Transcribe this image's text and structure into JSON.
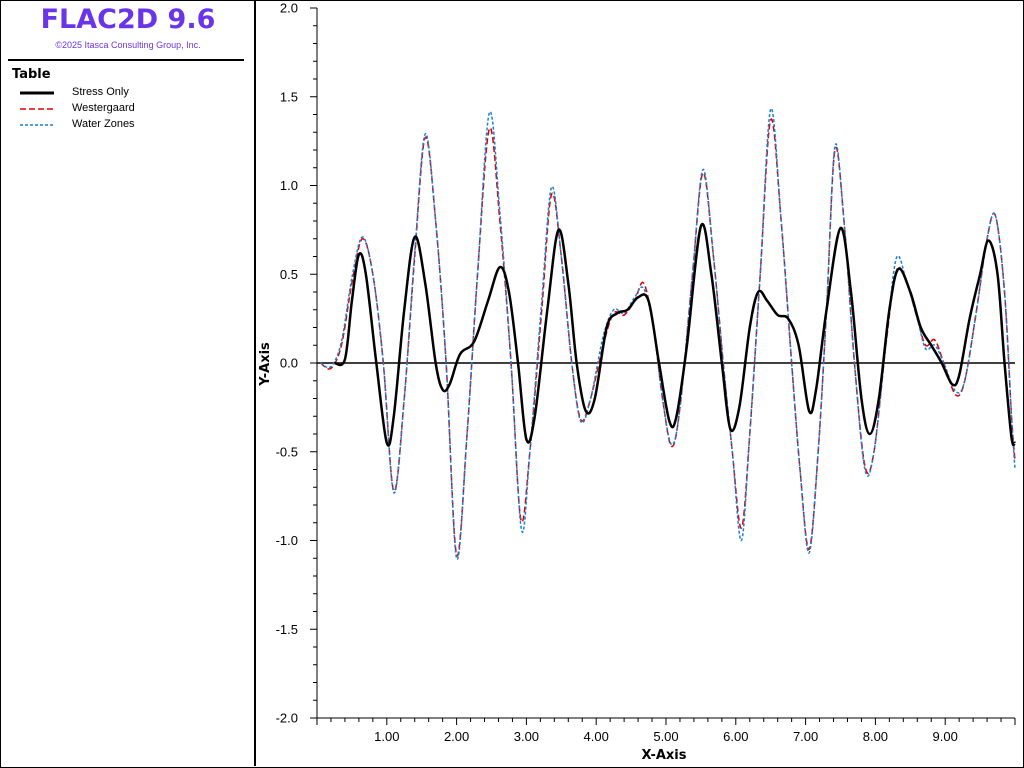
{
  "app": {
    "title": "FLAC2D 9.6",
    "copyright": "©2025 Itasca Consulting Group, Inc."
  },
  "legend": {
    "title": "Table",
    "items": [
      {
        "label": "Stress Only",
        "color": "#000000",
        "style": "solid"
      },
      {
        "label": "Westergaard",
        "color": "#dd0000",
        "style": "dashed"
      },
      {
        "label": "Water Zones",
        "color": "#1a7fd6",
        "style": "dotted"
      }
    ]
  },
  "chart_data": {
    "type": "line",
    "xlabel": "X-Axis",
    "ylabel": "Y-Axis",
    "xlim": [
      0,
      10
    ],
    "ylim": [
      -2.0,
      2.0
    ],
    "x_ticks": [
      "1.00",
      "2.00",
      "3.00",
      "4.00",
      "5.00",
      "6.00",
      "7.00",
      "8.00",
      "9.00"
    ],
    "y_ticks": [
      "2.0",
      "1.5",
      "1.0",
      "0.5",
      "0.0",
      "-0.5",
      "-1.0",
      "-1.5",
      "-2.0"
    ],
    "grid": false,
    "series": [
      {
        "name": "Stress Only",
        "color": "#000000",
        "style": "solid",
        "points": [
          [
            0.25,
            0.0
          ],
          [
            0.4,
            0.02
          ],
          [
            0.5,
            0.35
          ],
          [
            0.6,
            0.61
          ],
          [
            0.7,
            0.5
          ],
          [
            0.85,
            0.0
          ],
          [
            1.0,
            -0.45
          ],
          [
            1.1,
            -0.3
          ],
          [
            1.25,
            0.3
          ],
          [
            1.4,
            0.71
          ],
          [
            1.55,
            0.45
          ],
          [
            1.7,
            0.0
          ],
          [
            1.8,
            -0.15
          ],
          [
            1.9,
            -0.12
          ],
          [
            2.05,
            0.05
          ],
          [
            2.25,
            0.12
          ],
          [
            2.45,
            0.35
          ],
          [
            2.62,
            0.54
          ],
          [
            2.75,
            0.4
          ],
          [
            2.88,
            0.0
          ],
          [
            3.0,
            -0.43
          ],
          [
            3.12,
            -0.3
          ],
          [
            3.3,
            0.3
          ],
          [
            3.46,
            0.75
          ],
          [
            3.6,
            0.45
          ],
          [
            3.72,
            0.0
          ],
          [
            3.85,
            -0.27
          ],
          [
            3.98,
            -0.2
          ],
          [
            4.15,
            0.2
          ],
          [
            4.3,
            0.28
          ],
          [
            4.45,
            0.3
          ],
          [
            4.6,
            0.37
          ],
          [
            4.75,
            0.35
          ],
          [
            4.9,
            0.0
          ],
          [
            5.05,
            -0.33
          ],
          [
            5.15,
            -0.3
          ],
          [
            5.3,
            0.1
          ],
          [
            5.5,
            0.77
          ],
          [
            5.65,
            0.5
          ],
          [
            5.8,
            0.0
          ],
          [
            5.92,
            -0.37
          ],
          [
            6.05,
            -0.25
          ],
          [
            6.2,
            0.2
          ],
          [
            6.32,
            0.4
          ],
          [
            6.45,
            0.35
          ],
          [
            6.6,
            0.27
          ],
          [
            6.75,
            0.25
          ],
          [
            6.9,
            0.1
          ],
          [
            7.05,
            -0.27
          ],
          [
            7.15,
            -0.15
          ],
          [
            7.3,
            0.3
          ],
          [
            7.5,
            0.76
          ],
          [
            7.65,
            0.4
          ],
          [
            7.8,
            -0.2
          ],
          [
            7.92,
            -0.4
          ],
          [
            8.05,
            -0.2
          ],
          [
            8.2,
            0.3
          ],
          [
            8.33,
            0.53
          ],
          [
            8.5,
            0.4
          ],
          [
            8.65,
            0.2
          ],
          [
            8.8,
            0.1
          ],
          [
            8.95,
            0.0
          ],
          [
            9.1,
            -0.12
          ],
          [
            9.2,
            -0.07
          ],
          [
            9.35,
            0.25
          ],
          [
            9.5,
            0.5
          ],
          [
            9.62,
            0.69
          ],
          [
            9.75,
            0.5
          ],
          [
            9.85,
            0.0
          ],
          [
            9.95,
            -0.42
          ],
          [
            10.0,
            -0.45
          ]
        ]
      },
      {
        "name": "Westergaard",
        "color": "#dd0000",
        "style": "dashed",
        "points": [
          [
            0.05,
            0.0
          ],
          [
            0.2,
            -0.03
          ],
          [
            0.35,
            0.1
          ],
          [
            0.5,
            0.45
          ],
          [
            0.65,
            0.7
          ],
          [
            0.8,
            0.5
          ],
          [
            0.95,
            0.0
          ],
          [
            1.1,
            -0.72
          ],
          [
            1.25,
            -0.2
          ],
          [
            1.4,
            0.6
          ],
          [
            1.55,
            1.27
          ],
          [
            1.7,
            0.8
          ],
          [
            1.85,
            0.0
          ],
          [
            2.0,
            -1.08
          ],
          [
            2.15,
            -0.4
          ],
          [
            2.3,
            0.5
          ],
          [
            2.47,
            1.32
          ],
          [
            2.62,
            0.8
          ],
          [
            2.78,
            0.0
          ],
          [
            2.92,
            -0.88
          ],
          [
            3.05,
            -0.5
          ],
          [
            3.22,
            0.3
          ],
          [
            3.36,
            0.95
          ],
          [
            3.5,
            0.6
          ],
          [
            3.65,
            0.0
          ],
          [
            3.78,
            -0.32
          ],
          [
            3.92,
            -0.2
          ],
          [
            4.1,
            0.1
          ],
          [
            4.25,
            0.28
          ],
          [
            4.4,
            0.27
          ],
          [
            4.55,
            0.35
          ],
          [
            4.68,
            0.45
          ],
          [
            4.82,
            0.2
          ],
          [
            4.95,
            -0.2
          ],
          [
            5.08,
            -0.47
          ],
          [
            5.2,
            -0.25
          ],
          [
            5.38,
            0.5
          ],
          [
            5.53,
            1.07
          ],
          [
            5.68,
            0.6
          ],
          [
            5.82,
            0.0
          ],
          [
            5.95,
            -0.5
          ],
          [
            6.08,
            -0.93
          ],
          [
            6.2,
            -0.4
          ],
          [
            6.35,
            0.5
          ],
          [
            6.5,
            1.37
          ],
          [
            6.65,
            0.8
          ],
          [
            6.8,
            0.0
          ],
          [
            6.92,
            -0.6
          ],
          [
            7.05,
            -1.05
          ],
          [
            7.18,
            -0.5
          ],
          [
            7.3,
            0.3
          ],
          [
            7.42,
            1.2
          ],
          [
            7.55,
            0.8
          ],
          [
            7.7,
            0.0
          ],
          [
            7.85,
            -0.58
          ],
          [
            7.98,
            -0.5
          ],
          [
            8.15,
            0.1
          ],
          [
            8.3,
            0.52
          ],
          [
            8.45,
            0.45
          ],
          [
            8.6,
            0.25
          ],
          [
            8.72,
            0.1
          ],
          [
            8.85,
            0.13
          ],
          [
            8.98,
            0.0
          ],
          [
            9.15,
            -0.18
          ],
          [
            9.28,
            -0.1
          ],
          [
            9.45,
            0.3
          ],
          [
            9.6,
            0.7
          ],
          [
            9.72,
            0.83
          ],
          [
            9.85,
            0.4
          ],
          [
            9.95,
            -0.3
          ],
          [
            10.0,
            -0.55
          ]
        ]
      },
      {
        "name": "Water Zones",
        "color": "#1a7fd6",
        "style": "dotted",
        "points": [
          [
            0.05,
            0.0
          ],
          [
            0.2,
            -0.02
          ],
          [
            0.35,
            0.12
          ],
          [
            0.5,
            0.48
          ],
          [
            0.65,
            0.71
          ],
          [
            0.8,
            0.5
          ],
          [
            0.95,
            0.0
          ],
          [
            1.1,
            -0.73
          ],
          [
            1.25,
            -0.2
          ],
          [
            1.4,
            0.62
          ],
          [
            1.55,
            1.29
          ],
          [
            1.7,
            0.8
          ],
          [
            1.85,
            0.0
          ],
          [
            2.0,
            -1.1
          ],
          [
            2.15,
            -0.4
          ],
          [
            2.3,
            0.5
          ],
          [
            2.47,
            1.41
          ],
          [
            2.62,
            0.85
          ],
          [
            2.78,
            0.0
          ],
          [
            2.93,
            -0.94
          ],
          [
            3.05,
            -0.5
          ],
          [
            3.22,
            0.35
          ],
          [
            3.36,
            0.99
          ],
          [
            3.5,
            0.6
          ],
          [
            3.65,
            0.0
          ],
          [
            3.78,
            -0.33
          ],
          [
            3.92,
            -0.2
          ],
          [
            4.1,
            0.15
          ],
          [
            4.25,
            0.3
          ],
          [
            4.4,
            0.28
          ],
          [
            4.55,
            0.37
          ],
          [
            4.68,
            0.42
          ],
          [
            4.82,
            0.2
          ],
          [
            4.95,
            -0.2
          ],
          [
            5.08,
            -0.46
          ],
          [
            5.2,
            -0.25
          ],
          [
            5.38,
            0.5
          ],
          [
            5.53,
            1.09
          ],
          [
            5.68,
            0.6
          ],
          [
            5.82,
            0.0
          ],
          [
            5.95,
            -0.5
          ],
          [
            6.08,
            -1.0
          ],
          [
            6.2,
            -0.4
          ],
          [
            6.35,
            0.5
          ],
          [
            6.5,
            1.43
          ],
          [
            6.65,
            0.8
          ],
          [
            6.8,
            0.0
          ],
          [
            6.92,
            -0.6
          ],
          [
            7.05,
            -1.07
          ],
          [
            7.18,
            -0.5
          ],
          [
            7.3,
            0.3
          ],
          [
            7.42,
            1.22
          ],
          [
            7.55,
            0.8
          ],
          [
            7.7,
            0.0
          ],
          [
            7.85,
            -0.6
          ],
          [
            7.98,
            -0.5
          ],
          [
            8.15,
            0.1
          ],
          [
            8.3,
            0.59
          ],
          [
            8.45,
            0.45
          ],
          [
            8.6,
            0.25
          ],
          [
            8.72,
            0.08
          ],
          [
            8.85,
            0.1
          ],
          [
            8.98,
            0.0
          ],
          [
            9.15,
            -0.16
          ],
          [
            9.28,
            -0.1
          ],
          [
            9.45,
            0.3
          ],
          [
            9.6,
            0.7
          ],
          [
            9.72,
            0.83
          ],
          [
            9.85,
            0.4
          ],
          [
            9.95,
            -0.3
          ],
          [
            10.0,
            -0.6
          ]
        ]
      }
    ]
  }
}
